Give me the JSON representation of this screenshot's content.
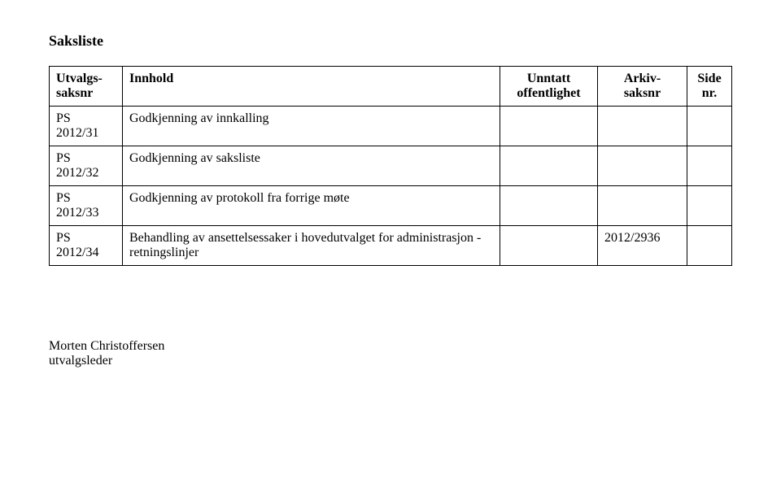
{
  "title": "Saksliste",
  "headers": {
    "col1_line1": "Utvalgs-",
    "col1_line2": "saksnr",
    "col2": "Innhold",
    "col3_line1": "Unntatt",
    "col3_line2": "offentlighet",
    "col4_line1": "Arkiv-",
    "col4_line2": "saksnr",
    "col5_line1": "Side",
    "col5_line2": "nr."
  },
  "rows": [
    {
      "saksnr_line1": "PS",
      "saksnr_line2": "2012/31",
      "innhold": "Godkjenning av innkalling",
      "unntatt": "",
      "arkiv": "",
      "side": ""
    },
    {
      "saksnr_line1": "PS",
      "saksnr_line2": "2012/32",
      "innhold": "Godkjenning av saksliste",
      "unntatt": "",
      "arkiv": "",
      "side": ""
    },
    {
      "saksnr_line1": "PS",
      "saksnr_line2": "2012/33",
      "innhold": "Godkjenning av protokoll fra forrige møte",
      "unntatt": "",
      "arkiv": "",
      "side": ""
    },
    {
      "saksnr_line1": "PS",
      "saksnr_line2": "2012/34",
      "innhold": "Behandling av ansettelsessaker i hovedutvalget for administrasjon - retningslinjer",
      "unntatt": "",
      "arkiv": "2012/2936",
      "side": ""
    }
  ],
  "signature": {
    "name": "Morten Christoffersen",
    "role": "utvalgsleder"
  }
}
